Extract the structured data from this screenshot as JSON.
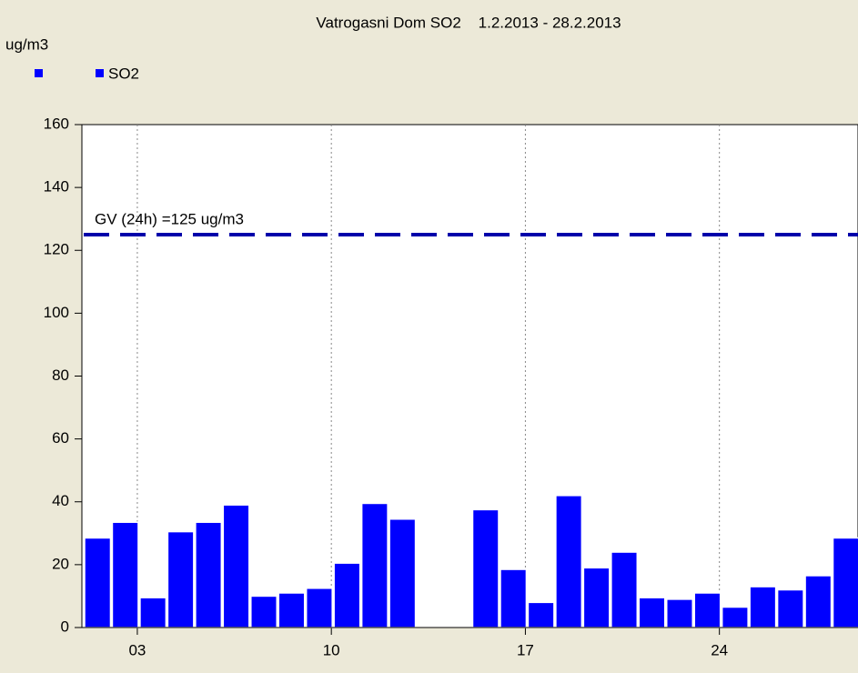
{
  "chart_data": {
    "type": "bar",
    "title": "Vatrogasni Dom SO2    1.2.2013 - 28.2.2013",
    "y_label": "ug/m3",
    "categories": [
      null,
      null,
      "03",
      null,
      null,
      null,
      null,
      null,
      null,
      "10",
      null,
      null,
      null,
      null,
      null,
      null,
      "17",
      null,
      null,
      null,
      null,
      null,
      null,
      "24",
      null,
      null,
      null,
      null
    ],
    "series": [
      {
        "name": "SO2",
        "color": "#0000ff",
        "values": [
          28.5,
          33.5,
          9.5,
          30.5,
          33.5,
          39,
          10,
          11,
          12.5,
          20.5,
          39.5,
          34.5,
          null,
          null,
          37.5,
          18.5,
          8,
          42,
          19,
          24,
          9.5,
          9,
          11,
          6.5,
          13,
          12,
          16.5,
          28.5
        ]
      }
    ],
    "ylim": [
      0,
      160
    ],
    "yticks": [
      0,
      20,
      40,
      60,
      80,
      100,
      120,
      140,
      160
    ],
    "threshold": {
      "value": 125,
      "label": "GV (24h) =125 ug/m3",
      "color": "#0000aa"
    },
    "grid": true
  }
}
